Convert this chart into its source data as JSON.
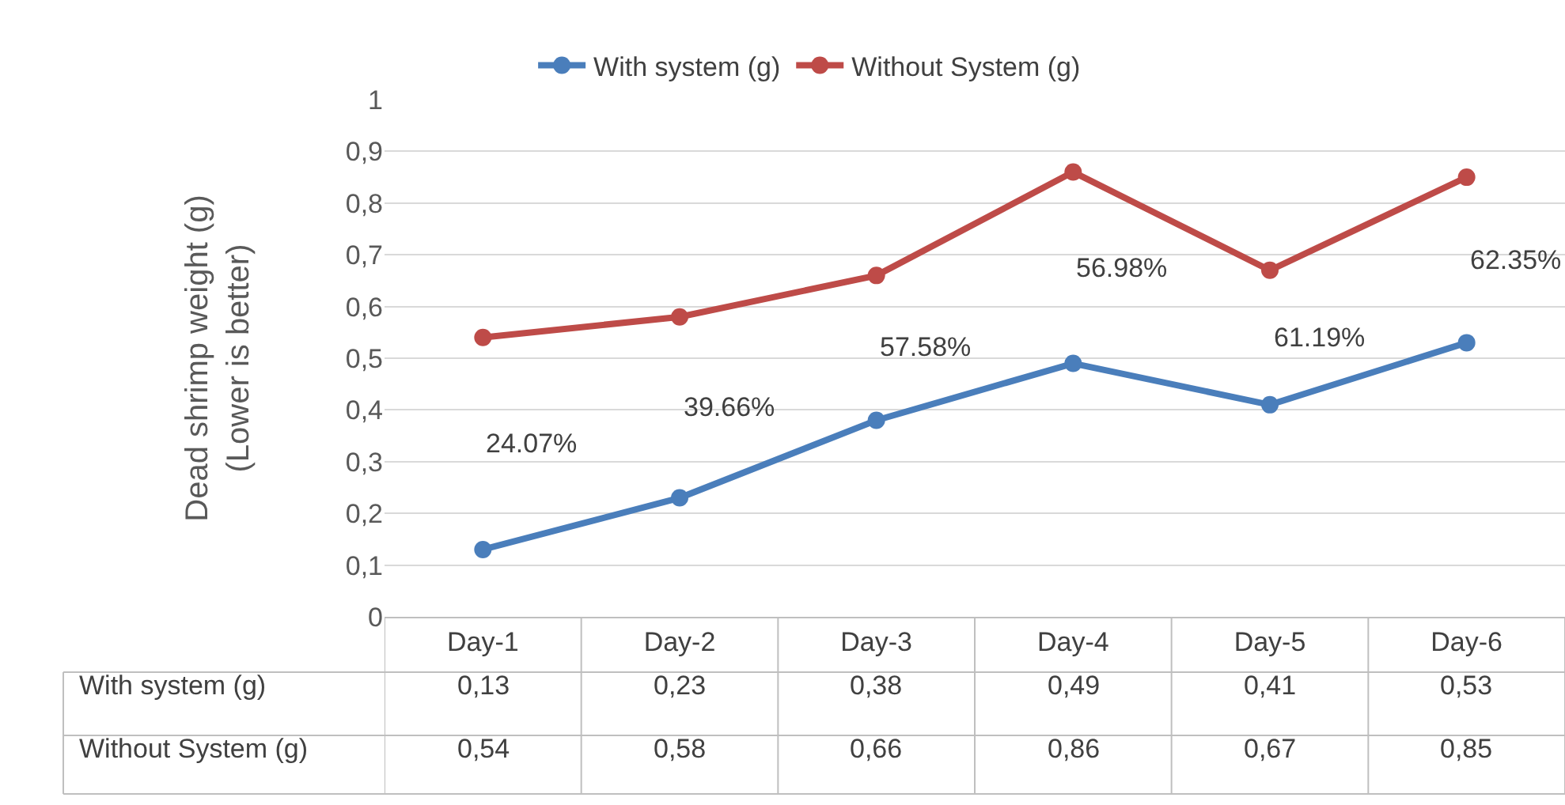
{
  "chart_data": {
    "type": "line",
    "ylabel": "Dead shrimp weight (g)\n(Lower is better)",
    "categories": [
      "Day-1",
      "Day-2",
      "Day-3",
      "Day-4",
      "Day-5",
      "Day-6"
    ],
    "series": [
      {
        "name": "With system (g)",
        "color": "#4a7ebb",
        "values": [
          0.13,
          0.23,
          0.38,
          0.49,
          0.41,
          0.53
        ],
        "value_labels": [
          "0,13",
          "0,23",
          "0,38",
          "0,49",
          "0,41",
          "0,53"
        ]
      },
      {
        "name": "Without System (g)",
        "color": "#be4b48",
        "values": [
          0.54,
          0.58,
          0.66,
          0.86,
          0.67,
          0.85
        ],
        "value_labels": [
          "0,54",
          "0,58",
          "0,66",
          "0,86",
          "0,67",
          "0,85"
        ]
      }
    ],
    "ylim": [
      0,
      1
    ],
    "yticks": [
      0,
      {
        "value": 0.1,
        "label": "0,1"
      },
      {
        "value": 0.2,
        "label": "0,2"
      },
      {
        "value": 0.3,
        "label": "0,3"
      },
      {
        "value": 0.4,
        "label": "0,4"
      },
      {
        "value": 0.5,
        "label": "0,5"
      },
      {
        "value": 0.6,
        "label": "0,6"
      },
      {
        "value": 0.7,
        "label": "0,7"
      },
      {
        "value": 0.8,
        "label": "0,8"
      },
      {
        "value": 0.9,
        "label": "0,9"
      },
      1
    ],
    "annotations": [
      "24.07%",
      "39.66%",
      "57.58%",
      "56.98%",
      "61.19%",
      "62.35%"
    ],
    "grid": "y",
    "legend": "top",
    "marker": "circle",
    "line_style": "solid"
  }
}
